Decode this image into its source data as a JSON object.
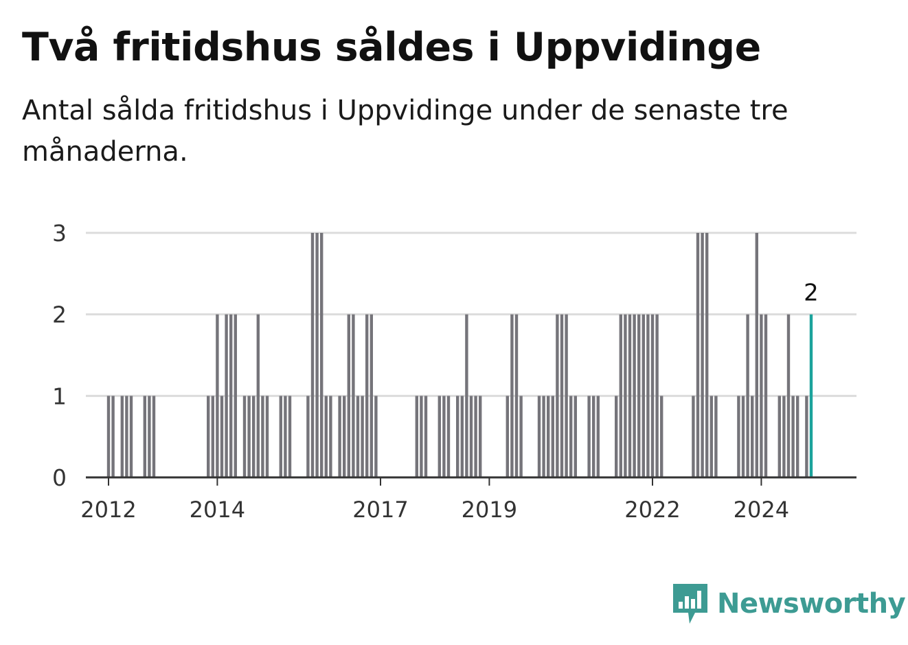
{
  "header": {
    "title": "Två fritidshus såldes i Uppvidinge",
    "subtitle": "Antal sålda fritidshus i Uppvidinge under de senaste tre månaderna."
  },
  "brand": {
    "name": "Newsworthy",
    "color": "#3d9b93",
    "icon": "bar-chart-speech-bubble-icon"
  },
  "colors": {
    "bar": "#75747a",
    "highlight": "#1ba39c",
    "grid": "#dcdcdc",
    "axis": "#333333"
  },
  "chart_data": {
    "type": "bar",
    "title": "",
    "xlabel": "",
    "ylabel": "",
    "ylim": [
      0,
      3
    ],
    "y_ticks": [
      0,
      1,
      2,
      3
    ],
    "x_ticks": [
      "2012",
      "2014",
      "2017",
      "2019",
      "2022",
      "2024"
    ],
    "x_range": [
      "2011-08",
      "2025-10"
    ],
    "grid": true,
    "last_value_label": "2",
    "series": [
      {
        "points": [
          {
            "x": "2012-01",
            "y": 1
          },
          {
            "x": "2012-02",
            "y": 1
          },
          {
            "x": "2012-04",
            "y": 1
          },
          {
            "x": "2012-05",
            "y": 1
          },
          {
            "x": "2012-06",
            "y": 1
          },
          {
            "x": "2012-09",
            "y": 1
          },
          {
            "x": "2012-10",
            "y": 1
          },
          {
            "x": "2012-11",
            "y": 1
          },
          {
            "x": "2013-11",
            "y": 1
          },
          {
            "x": "2013-12",
            "y": 1
          },
          {
            "x": "2014-01",
            "y": 2
          },
          {
            "x": "2014-02",
            "y": 1
          },
          {
            "x": "2014-03",
            "y": 2
          },
          {
            "x": "2014-04",
            "y": 2
          },
          {
            "x": "2014-05",
            "y": 2
          },
          {
            "x": "2014-07",
            "y": 1
          },
          {
            "x": "2014-08",
            "y": 1
          },
          {
            "x": "2014-09",
            "y": 1
          },
          {
            "x": "2014-10",
            "y": 2
          },
          {
            "x": "2014-11",
            "y": 1
          },
          {
            "x": "2014-12",
            "y": 1
          },
          {
            "x": "2015-03",
            "y": 1
          },
          {
            "x": "2015-04",
            "y": 1
          },
          {
            "x": "2015-05",
            "y": 1
          },
          {
            "x": "2015-09",
            "y": 1
          },
          {
            "x": "2015-10",
            "y": 3
          },
          {
            "x": "2015-11",
            "y": 3
          },
          {
            "x": "2015-12",
            "y": 3
          },
          {
            "x": "2016-01",
            "y": 1
          },
          {
            "x": "2016-02",
            "y": 1
          },
          {
            "x": "2016-04",
            "y": 1
          },
          {
            "x": "2016-05",
            "y": 1
          },
          {
            "x": "2016-06",
            "y": 2
          },
          {
            "x": "2016-07",
            "y": 2
          },
          {
            "x": "2016-08",
            "y": 1
          },
          {
            "x": "2016-09",
            "y": 1
          },
          {
            "x": "2016-10",
            "y": 2
          },
          {
            "x": "2016-11",
            "y": 2
          },
          {
            "x": "2016-12",
            "y": 1
          },
          {
            "x": "2017-09",
            "y": 1
          },
          {
            "x": "2017-10",
            "y": 1
          },
          {
            "x": "2017-11",
            "y": 1
          },
          {
            "x": "2018-02",
            "y": 1
          },
          {
            "x": "2018-03",
            "y": 1
          },
          {
            "x": "2018-04",
            "y": 1
          },
          {
            "x": "2018-06",
            "y": 1
          },
          {
            "x": "2018-07",
            "y": 1
          },
          {
            "x": "2018-08",
            "y": 2
          },
          {
            "x": "2018-09",
            "y": 1
          },
          {
            "x": "2018-10",
            "y": 1
          },
          {
            "x": "2018-11",
            "y": 1
          },
          {
            "x": "2019-05",
            "y": 1
          },
          {
            "x": "2019-06",
            "y": 2
          },
          {
            "x": "2019-07",
            "y": 2
          },
          {
            "x": "2019-08",
            "y": 1
          },
          {
            "x": "2019-12",
            "y": 1
          },
          {
            "x": "2020-01",
            "y": 1
          },
          {
            "x": "2020-02",
            "y": 1
          },
          {
            "x": "2020-03",
            "y": 1
          },
          {
            "x": "2020-04",
            "y": 2
          },
          {
            "x": "2020-05",
            "y": 2
          },
          {
            "x": "2020-06",
            "y": 2
          },
          {
            "x": "2020-07",
            "y": 1
          },
          {
            "x": "2020-08",
            "y": 1
          },
          {
            "x": "2020-11",
            "y": 1
          },
          {
            "x": "2020-12",
            "y": 1
          },
          {
            "x": "2021-01",
            "y": 1
          },
          {
            "x": "2021-05",
            "y": 1
          },
          {
            "x": "2021-06",
            "y": 2
          },
          {
            "x": "2021-07",
            "y": 2
          },
          {
            "x": "2021-08",
            "y": 2
          },
          {
            "x": "2021-09",
            "y": 2
          },
          {
            "x": "2021-10",
            "y": 2
          },
          {
            "x": "2021-11",
            "y": 2
          },
          {
            "x": "2021-12",
            "y": 2
          },
          {
            "x": "2022-01",
            "y": 2
          },
          {
            "x": "2022-02",
            "y": 2
          },
          {
            "x": "2022-03",
            "y": 1
          },
          {
            "x": "2022-10",
            "y": 1
          },
          {
            "x": "2022-11",
            "y": 3
          },
          {
            "x": "2022-12",
            "y": 3
          },
          {
            "x": "2023-01",
            "y": 3
          },
          {
            "x": "2023-02",
            "y": 1
          },
          {
            "x": "2023-03",
            "y": 1
          },
          {
            "x": "2023-08",
            "y": 1
          },
          {
            "x": "2023-09",
            "y": 1
          },
          {
            "x": "2023-10",
            "y": 2
          },
          {
            "x": "2023-11",
            "y": 1
          },
          {
            "x": "2023-12",
            "y": 3
          },
          {
            "x": "2024-01",
            "y": 2
          },
          {
            "x": "2024-02",
            "y": 2
          },
          {
            "x": "2024-05",
            "y": 1
          },
          {
            "x": "2024-06",
            "y": 1
          },
          {
            "x": "2024-07",
            "y": 2
          },
          {
            "x": "2024-08",
            "y": 1
          },
          {
            "x": "2024-09",
            "y": 1
          },
          {
            "x": "2024-11",
            "y": 1
          },
          {
            "x": "2024-12",
            "y": 2
          }
        ]
      }
    ]
  }
}
